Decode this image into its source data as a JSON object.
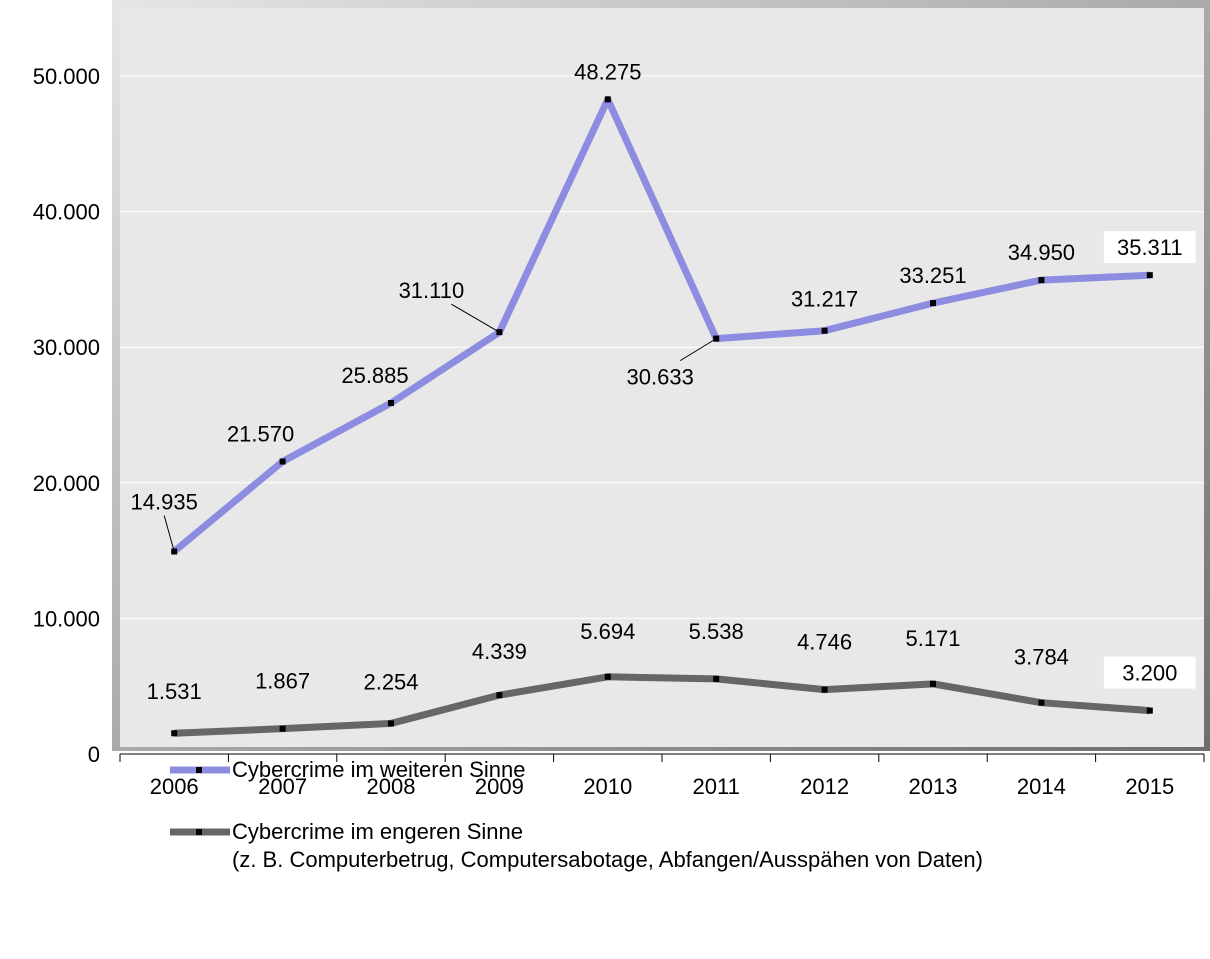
{
  "chart_data": {
    "type": "line",
    "title": "",
    "xlabel": "",
    "ylabel": "",
    "categories": [
      "2006",
      "2007",
      "2008",
      "2009",
      "2010",
      "2011",
      "2012",
      "2013",
      "2014",
      "2015"
    ],
    "ylim": [
      0,
      55000
    ],
    "y_ticks": [
      0,
      10000,
      20000,
      30000,
      40000,
      50000
    ],
    "y_tick_labels": [
      "0",
      "10.000",
      "20.000",
      "30.000",
      "40.000",
      "50.000"
    ],
    "grid": true,
    "legend_position": "bottom",
    "series": [
      {
        "name": "Cybercrime im weiteren Sinne",
        "color": "#8c8ce0",
        "values": [
          14935,
          21570,
          25885,
          31110,
          48275,
          30633,
          31217,
          33251,
          34950,
          35311
        ],
        "data_labels": [
          "14.935",
          "21.570",
          "25.885",
          "31.110",
          "48.275",
          "30.633",
          "31.217",
          "33.251",
          "34.950",
          "35.311"
        ]
      },
      {
        "name": "Cybercrime im engeren Sinne",
        "note": "(z. B. Computerbetrug, Computersabotage, Abfangen/Ausspähen von Daten)",
        "color": "#666666",
        "values": [
          1531,
          1867,
          2254,
          4339,
          5694,
          5538,
          4746,
          5171,
          3784,
          3200
        ],
        "data_labels": [
          "1.531",
          "1.867",
          "2.254",
          "4.339",
          "5.694",
          "5.538",
          "4.746",
          "5.171",
          "3.784",
          "3.200"
        ]
      }
    ]
  }
}
